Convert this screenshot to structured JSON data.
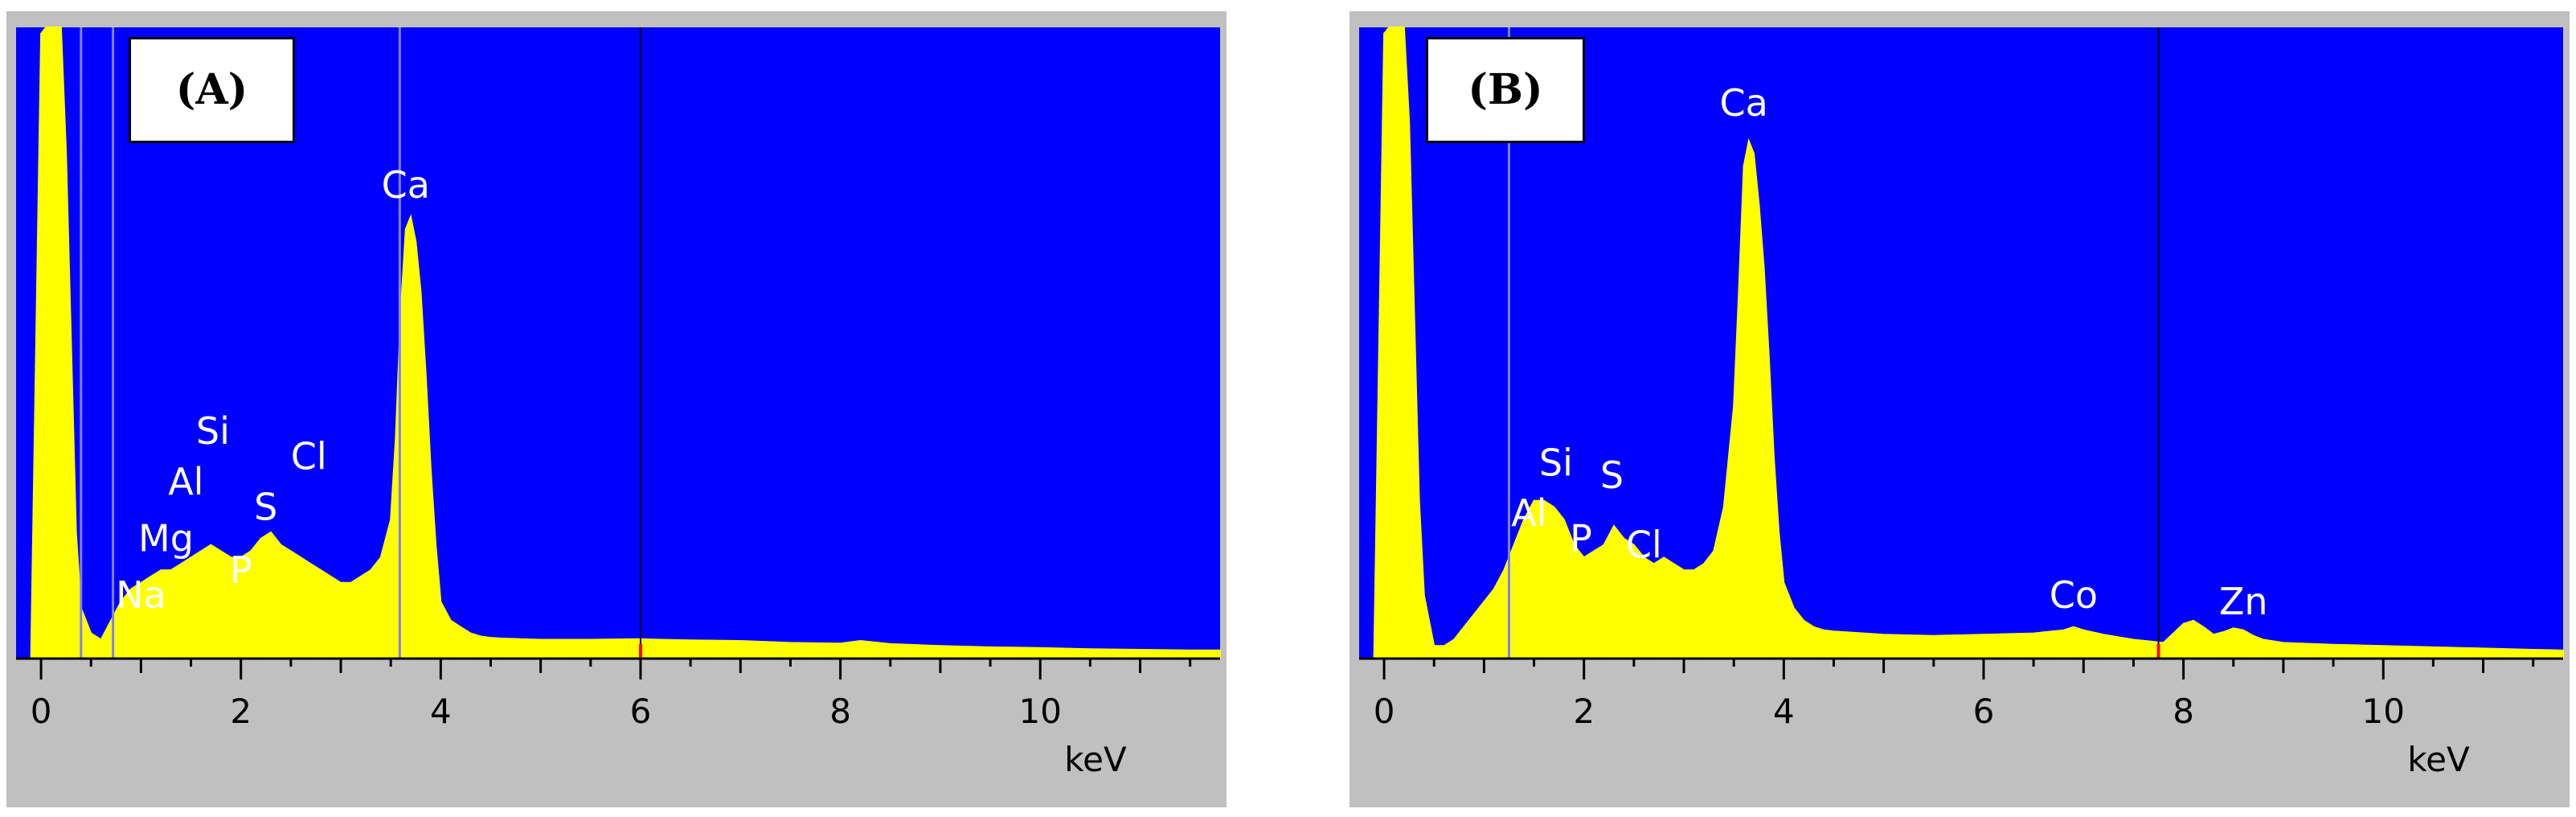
{
  "chart_data": [
    {
      "type": "area",
      "panel_label": "(A)",
      "xlabel": "keV",
      "ylabel": "",
      "title": "",
      "xlim": [
        -0.25,
        11.8
      ],
      "ylim": [
        0,
        100
      ],
      "x_ticks": [
        0,
        2,
        4,
        6,
        8,
        10
      ],
      "x_tick_labels": [
        "0",
        "2",
        "4",
        "6",
        "8",
        "10"
      ],
      "grid": false,
      "colors": {
        "plot_bg": "#0000ff",
        "fill": "#ffff00",
        "frame": "#c0c0c0",
        "marker_lines": "#8080ff",
        "cursor_line": "#000000",
        "cursor_mark": "#ff0000"
      },
      "cursor_x": 6.0,
      "marker_lines_x": [
        0.4,
        0.72,
        3.59
      ],
      "spectrum": {
        "x": [
          -0.1,
          0.0,
          0.05,
          0.1,
          0.15,
          0.2,
          0.25,
          0.3,
          0.35,
          0.4,
          0.5,
          0.6,
          0.7,
          0.8,
          0.9,
          1.0,
          1.1,
          1.2,
          1.3,
          1.4,
          1.5,
          1.6,
          1.7,
          1.8,
          1.9,
          2.0,
          2.1,
          2.2,
          2.3,
          2.4,
          2.5,
          2.6,
          2.7,
          2.8,
          2.9,
          3.0,
          3.1,
          3.2,
          3.3,
          3.4,
          3.5,
          3.55,
          3.6,
          3.65,
          3.7,
          3.75,
          3.8,
          3.85,
          3.9,
          3.95,
          4.0,
          4.1,
          4.2,
          4.3,
          4.4,
          4.5,
          4.6,
          4.8,
          5.0,
          5.5,
          6.0,
          6.2,
          6.5,
          7.0,
          7.5,
          8.0,
          8.2,
          8.5,
          9.0,
          9.5,
          10.0,
          10.5,
          11.0,
          11.5,
          11.8
        ],
        "y": [
          0,
          99,
          100,
          100,
          100,
          100,
          80,
          50,
          20,
          8,
          4,
          3,
          6,
          9,
          11,
          12,
          13,
          14,
          14,
          15,
          16,
          17,
          18,
          17,
          16,
          16,
          17,
          19,
          20,
          18,
          17,
          16,
          15,
          14,
          13,
          12,
          12,
          13,
          14,
          16,
          22,
          35,
          55,
          68,
          70,
          66,
          58,
          45,
          30,
          18,
          9,
          6,
          5,
          4,
          3.5,
          3.3,
          3.2,
          3.1,
          3.0,
          3.0,
          3.1,
          3.0,
          2.9,
          2.8,
          2.5,
          2.4,
          2.8,
          2.3,
          2.0,
          1.8,
          1.7,
          1.5,
          1.4,
          1.3,
          1.3
        ]
      },
      "element_labels": [
        {
          "text": "Na",
          "x": 1.0,
          "y": 8
        },
        {
          "text": "Mg",
          "x": 1.25,
          "y": 17
        },
        {
          "text": "Al",
          "x": 1.45,
          "y": 26
        },
        {
          "text": "Si",
          "x": 1.72,
          "y": 34
        },
        {
          "text": "P",
          "x": 2.0,
          "y": 12
        },
        {
          "text": "S",
          "x": 2.25,
          "y": 22
        },
        {
          "text": "Cl",
          "x": 2.68,
          "y": 30
        },
        {
          "text": "Ca",
          "x": 3.65,
          "y": 73
        }
      ]
    },
    {
      "type": "area",
      "panel_label": "(B)",
      "xlabel": "keV",
      "ylabel": "",
      "title": "",
      "xlim": [
        -0.25,
        11.8
      ],
      "ylim": [
        0,
        100
      ],
      "x_ticks": [
        0,
        2,
        4,
        6,
        8,
        10
      ],
      "x_tick_labels": [
        "0",
        "2",
        "4",
        "6",
        "8",
        "10"
      ],
      "grid": false,
      "colors": {
        "plot_bg": "#0000ff",
        "fill": "#ffff00",
        "frame": "#c0c0c0",
        "marker_lines": "#8080ff",
        "cursor_line": "#000000",
        "cursor_mark": "#ff0000"
      },
      "cursor_x": 7.75,
      "marker_lines_x": [
        1.25
      ],
      "spectrum": {
        "x": [
          -0.1,
          0.0,
          0.05,
          0.1,
          0.15,
          0.2,
          0.25,
          0.3,
          0.35,
          0.4,
          0.5,
          0.6,
          0.7,
          0.8,
          0.9,
          1.0,
          1.1,
          1.2,
          1.3,
          1.4,
          1.5,
          1.6,
          1.7,
          1.8,
          1.9,
          2.0,
          2.1,
          2.2,
          2.3,
          2.4,
          2.5,
          2.6,
          2.7,
          2.8,
          2.9,
          3.0,
          3.1,
          3.2,
          3.3,
          3.4,
          3.5,
          3.55,
          3.6,
          3.65,
          3.7,
          3.75,
          3.8,
          3.85,
          3.9,
          3.95,
          4.0,
          4.1,
          4.2,
          4.3,
          4.4,
          4.5,
          4.8,
          5.0,
          5.5,
          6.0,
          6.5,
          6.8,
          6.9,
          7.0,
          7.2,
          7.5,
          7.8,
          7.9,
          8.0,
          8.1,
          8.2,
          8.3,
          8.4,
          8.5,
          8.6,
          8.7,
          8.8,
          9.0,
          9.5,
          10.0,
          10.5,
          11.0,
          11.5,
          11.8
        ],
        "y": [
          0,
          99,
          100,
          100,
          100,
          100,
          85,
          55,
          25,
          10,
          2,
          2,
          3,
          5,
          7,
          9,
          11,
          14,
          18,
          22,
          25,
          25,
          24,
          22,
          18,
          16,
          17,
          18,
          21,
          19,
          18,
          16,
          15,
          16,
          15,
          14,
          14,
          15,
          17,
          24,
          40,
          58,
          78,
          82,
          80,
          72,
          62,
          48,
          32,
          20,
          12,
          8,
          6,
          5,
          4.5,
          4.3,
          4.0,
          3.8,
          3.6,
          3.8,
          4.0,
          4.5,
          5.0,
          4.5,
          3.8,
          3.0,
          2.5,
          4.0,
          5.5,
          6.0,
          5.0,
          3.8,
          4.2,
          4.8,
          4.5,
          3.6,
          3.0,
          2.5,
          2.2,
          2.0,
          1.8,
          1.6,
          1.4,
          1.3
        ]
      },
      "element_labels": [
        {
          "text": "Al",
          "x": 1.45,
          "y": 21
        },
        {
          "text": "Si",
          "x": 1.72,
          "y": 29
        },
        {
          "text": "P",
          "x": 1.97,
          "y": 17
        },
        {
          "text": "S",
          "x": 2.28,
          "y": 27
        },
        {
          "text": "Cl",
          "x": 2.6,
          "y": 16
        },
        {
          "text": "Co",
          "x": 6.9,
          "y": 8
        },
        {
          "text": "Zn",
          "x": 8.6,
          "y": 7
        },
        {
          "text": "Ca",
          "x": 3.6,
          "y": 86
        }
      ]
    }
  ]
}
